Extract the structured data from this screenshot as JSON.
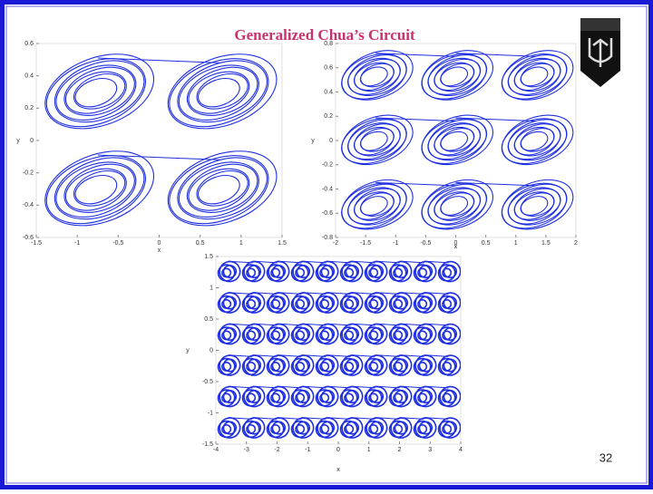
{
  "title": "Generalized Chua’s Circuit",
  "page_number": "32",
  "plots": [
    {
      "x_label": "x",
      "y_label": "y",
      "xticks": [
        -1.5,
        -1,
        -0.5,
        0,
        0.5,
        1,
        1.5
      ],
      "yticks": [
        0.6,
        0.4,
        0.2,
        0,
        -0.2,
        -0.4,
        -0.6
      ]
    },
    {
      "x_label": "x",
      "y_label": "y",
      "xticks": [
        -2,
        -1.5,
        -1,
        -0.5,
        0,
        0.5,
        1,
        1.5,
        2
      ],
      "yticks": [
        0.8,
        0.6,
        0.4,
        0.2,
        0,
        -0.2,
        -0.4,
        -0.6,
        -0.8
      ]
    },
    {
      "x_label": "x",
      "y_label": "y",
      "xticks": [
        -4,
        -3,
        -2,
        -1,
        0,
        1,
        2,
        3,
        4
      ],
      "yticks": [
        1.5,
        1,
        0.5,
        0,
        -0.5,
        -1,
        -1.5
      ]
    }
  ]
}
